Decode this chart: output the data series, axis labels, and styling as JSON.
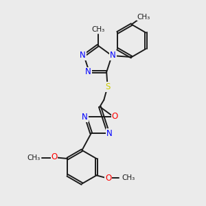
{
  "bg_color": "#ebebeb",
  "bond_color": "#1a1a1a",
  "N_color": "#0000ff",
  "O_color": "#ff0000",
  "S_color": "#cccc00",
  "font_size": 8.5,
  "small_font": 7.5,
  "line_width": 1.4,
  "doffset": 0.055,
  "xlim": [
    0,
    10
  ],
  "ylim": [
    0,
    10
  ]
}
